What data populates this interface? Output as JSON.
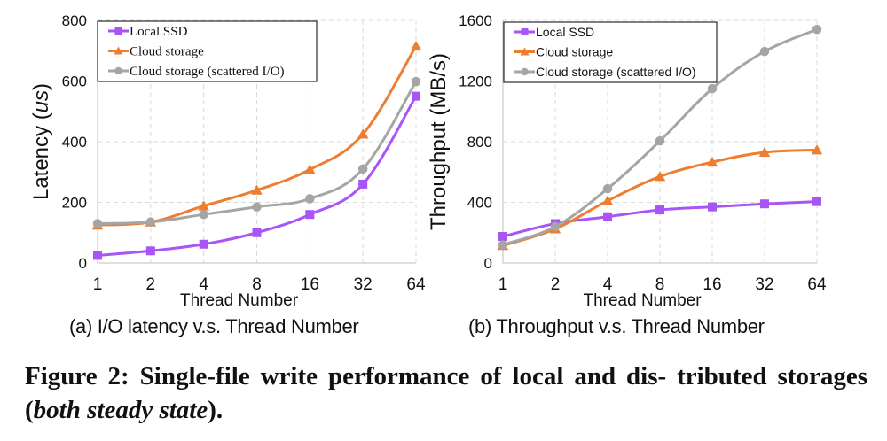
{
  "chart_data": [
    {
      "type": "line",
      "title": "",
      "xlabel": "Thread Number",
      "ylabel": "Latency (us)",
      "ylabel_prefix": "Latency (",
      "ylabel_italic": "us",
      "ylabel_suffix": ")",
      "x": [
        "1",
        "2",
        "4",
        "8",
        "16",
        "32",
        "64"
      ],
      "ylim": [
        0,
        800
      ],
      "yticks": [
        "0",
        "200",
        "400",
        "600",
        "800"
      ],
      "grid": true,
      "legend": "top-left",
      "series": [
        {
          "name": "Local SSD",
          "marker": "square",
          "color": "#a855f7",
          "values": [
            25,
            40,
            62,
            100,
            160,
            260,
            550
          ]
        },
        {
          "name": "Cloud storage",
          "marker": "triangle",
          "color": "#ed7d31",
          "values": [
            125,
            135,
            188,
            240,
            308,
            425,
            715
          ]
        },
        {
          "name": "Cloud storage (scattered I/O)",
          "marker": "circle",
          "color": "#a5a5a5",
          "values": [
            130,
            135,
            160,
            185,
            212,
            310,
            598
          ]
        }
      ],
      "caption": "(a) I/O latency v.s. Thread Number"
    },
    {
      "type": "line",
      "title": "",
      "xlabel": "Thread Number",
      "ylabel": "Throughput (MB/s)",
      "x": [
        "1",
        "2",
        "4",
        "8",
        "16",
        "32",
        "64"
      ],
      "ylim": [
        0,
        1600
      ],
      "yticks": [
        "0",
        "400",
        "800",
        "1200",
        "1600"
      ],
      "grid": true,
      "legend": "top-left",
      "series": [
        {
          "name": "Local SSD",
          "marker": "square",
          "color": "#a855f7",
          "values": [
            175,
            260,
            305,
            350,
            370,
            390,
            405
          ]
        },
        {
          "name": "Cloud storage",
          "marker": "triangle",
          "color": "#ed7d31",
          "values": [
            115,
            225,
            410,
            570,
            665,
            730,
            745
          ]
        },
        {
          "name": "Cloud storage (scattered I/O)",
          "marker": "circle",
          "color": "#a5a5a5",
          "values": [
            120,
            240,
            490,
            805,
            1150,
            1395,
            1540
          ]
        }
      ],
      "caption": "(b) Throughput v.s. Thread Number"
    }
  ],
  "figure_caption": {
    "part1": "Figure 2: Single-file write performance of local and dis- tributed storages (",
    "italic": "both steady state",
    "part2": ")."
  }
}
